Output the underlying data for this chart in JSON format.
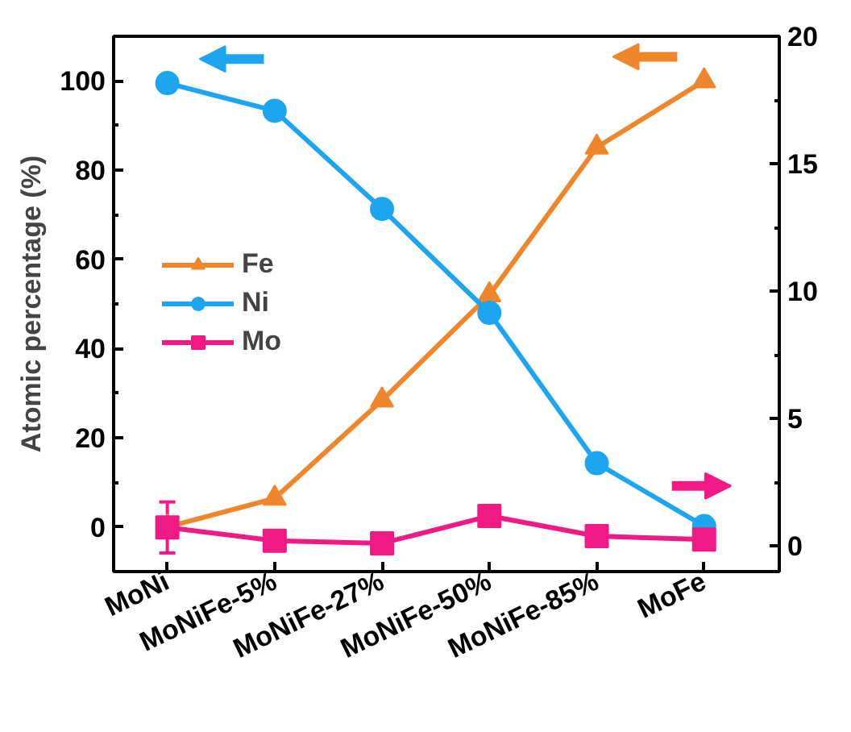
{
  "chart_data": {
    "type": "line",
    "ylabel": "Atomic percentage (%)",
    "categories": [
      "MoNi",
      "MoNiFe-5%",
      "MoNiFe-27%",
      "MoNiFe-50%",
      "MoNiFe-85%",
      "MoFe"
    ],
    "series": [
      {
        "name": "Fe",
        "color": "#f0862c",
        "marker": "triangle",
        "values": [
          0,
          6.4,
          28.4,
          52,
          85.1,
          100
        ]
      },
      {
        "name": "Ni",
        "color": "#1ea5f0",
        "marker": "circle",
        "values": [
          99.5,
          93.3,
          71.3,
          48,
          14.3,
          0.2
        ]
      },
      {
        "name": "Mo",
        "color": "#f01a85",
        "marker": "square",
        "axis": "y2",
        "values": [
          0.73,
          0.21,
          0.11,
          1.18,
          0.39,
          0.26
        ],
        "errors": [
          1.0,
          null,
          null,
          null,
          null,
          null
        ]
      }
    ],
    "ylim": [
      -10,
      110
    ],
    "yticks": [
      0,
      20,
      40,
      60,
      80,
      100
    ],
    "y2lim": [
      -1,
      20
    ],
    "y2ticks": [
      0,
      5,
      10,
      15,
      20
    ],
    "grid": false,
    "legend": "left"
  }
}
